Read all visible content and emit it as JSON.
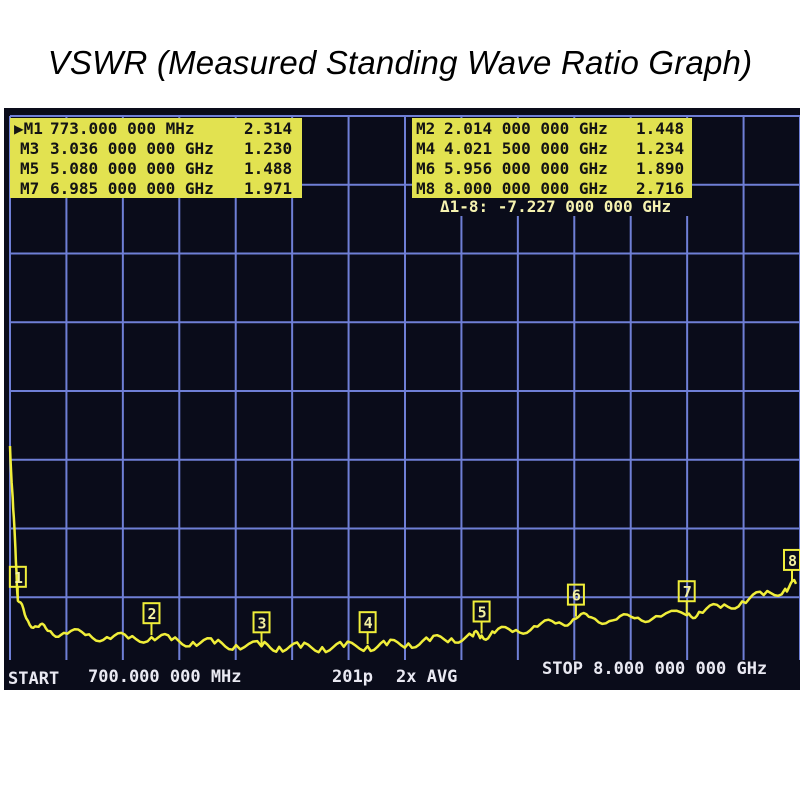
{
  "title": "VSWR (Measured Standing Wave Ratio Graph)",
  "colors": {
    "trace": "#f0ee3a",
    "grid": "#6f7fd6",
    "background": "#0a0c1a",
    "readout_bg": "#e8e85a",
    "readout_text": "#101018",
    "footer_text": "#e9e9f2"
  },
  "marker_readouts": [
    {
      "label": "M1",
      "value": "773.000 000 MHz",
      "vswr": "2.314",
      "active": true
    },
    {
      "label": "M2",
      "value": "2.014 000 000 GHz",
      "vswr": "1.448"
    },
    {
      "label": "M3",
      "value": "3.036 000 000 GHz",
      "vswr": "1.230"
    },
    {
      "label": "M4",
      "value": "4.021 500 000 GHz",
      "vswr": "1.234"
    },
    {
      "label": "M5",
      "value": "5.080 000 000 GHz",
      "vswr": "1.488"
    },
    {
      "label": "M6",
      "value": "5.956 000 000 GHz",
      "vswr": "1.890"
    },
    {
      "label": "M7",
      "value": "6.985 000 000 GHz",
      "vswr": "1.971"
    },
    {
      "label": "M8",
      "value": "8.000 000 000 GHz",
      "vswr": "2.716"
    }
  ],
  "delta_readout": "Δ1-8: -7.227 000 000 GHz",
  "footer": {
    "start": "START",
    "start_value": "700.000 000 MHz",
    "points": "201p",
    "avg": "2x AVG",
    "stop": "STOP 8.000 000 000 GHz"
  },
  "chart_data": {
    "type": "line",
    "title": "VSWR (Measured Standing Wave Ratio Graph)",
    "xlabel": "",
    "ylabel": "",
    "xlim": [
      0.7,
      8.0
    ],
    "x_unit": "GHz",
    "grid": true,
    "divisions_x": 14,
    "divisions_y": 8,
    "series": [
      {
        "x": [
          0.7,
          0.73,
          0.76,
          0.773,
          0.85,
          0.95,
          1.05,
          1.2,
          1.4,
          1.6,
          1.8,
          2.014,
          2.2,
          2.4,
          2.6,
          2.8,
          3.036,
          3.2,
          3.4,
          3.6,
          3.8,
          4.021,
          4.2,
          4.4,
          4.6,
          4.8,
          5.0,
          5.08,
          5.2,
          5.4,
          5.6,
          5.8,
          5.956,
          6.1,
          6.3,
          6.5,
          6.7,
          6.985,
          7.1,
          7.3,
          7.5,
          7.7,
          7.9,
          8.0
        ],
        "y": [
          6.0,
          4.5,
          3.0,
          2.314,
          1.9,
          1.7,
          1.6,
          1.55,
          1.5,
          1.45,
          1.42,
          1.448,
          1.38,
          1.33,
          1.3,
          1.26,
          1.23,
          1.22,
          1.2,
          1.21,
          1.22,
          1.234,
          1.26,
          1.3,
          1.36,
          1.42,
          1.47,
          1.488,
          1.55,
          1.62,
          1.7,
          1.8,
          1.89,
          1.92,
          1.85,
          1.9,
          1.95,
          1.971,
          2.05,
          2.15,
          2.3,
          2.45,
          2.6,
          2.716
        ]
      }
    ],
    "markers": [
      {
        "label": "1",
        "x": 0.773,
        "y": 2.314
      },
      {
        "label": "2",
        "x": 2.014,
        "y": 1.448
      },
      {
        "label": "3",
        "x": 3.036,
        "y": 1.23
      },
      {
        "label": "4",
        "x": 4.0215,
        "y": 1.234
      },
      {
        "label": "5",
        "x": 5.08,
        "y": 1.488
      },
      {
        "label": "6",
        "x": 5.956,
        "y": 1.89
      },
      {
        "label": "7",
        "x": 6.985,
        "y": 1.971
      },
      {
        "label": "8",
        "x": 8.0,
        "y": 2.716
      }
    ]
  }
}
